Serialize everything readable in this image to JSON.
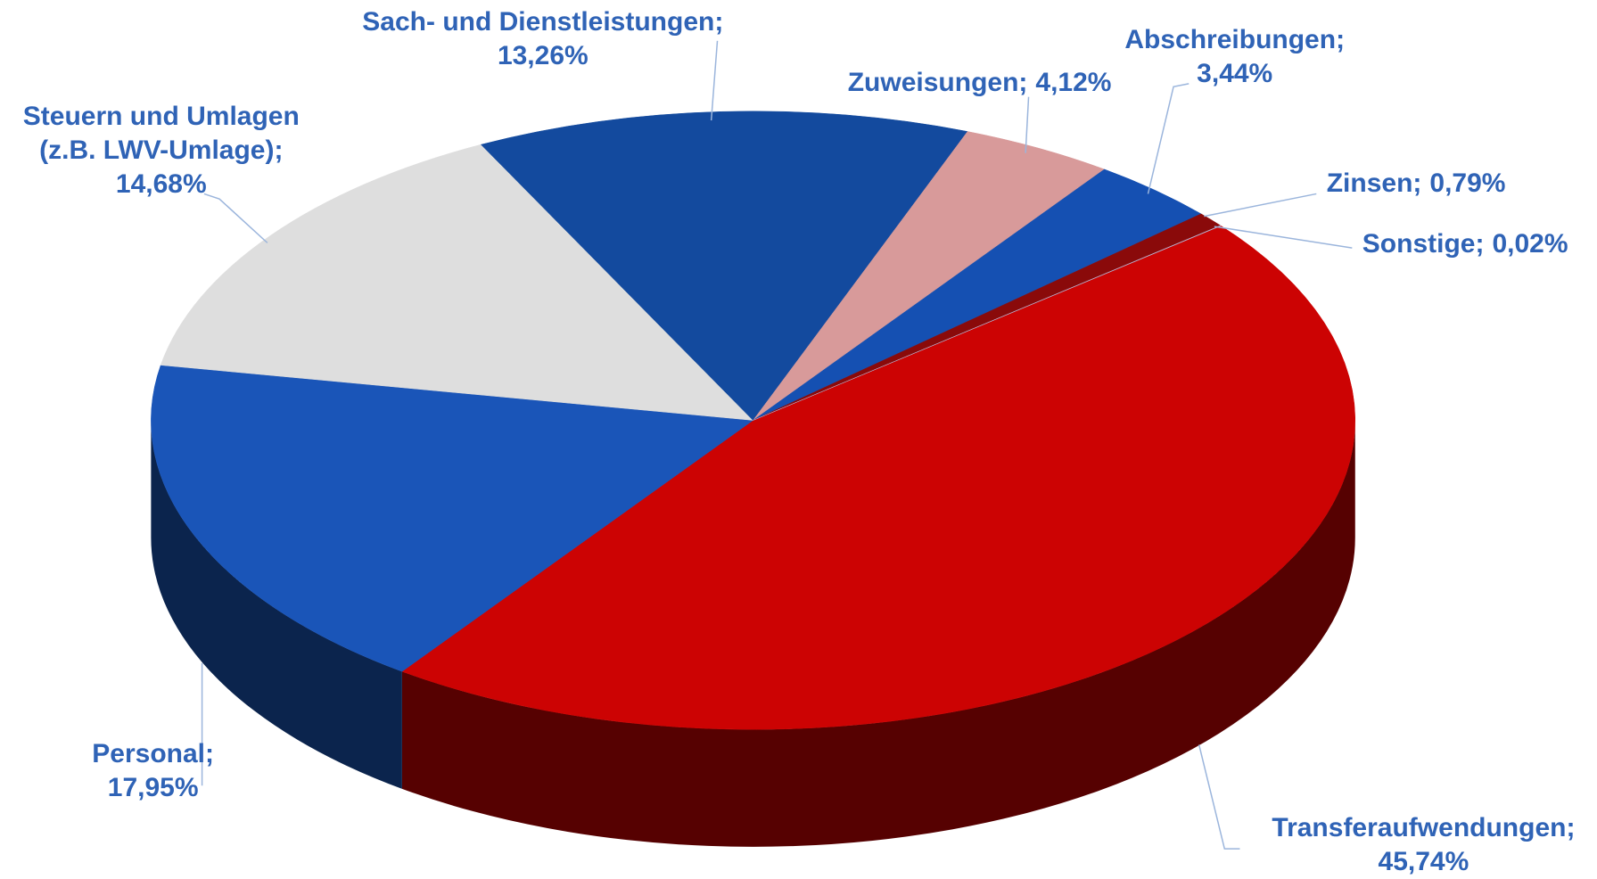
{
  "chart_data": {
    "type": "pie3d",
    "categories": [
      "Transferaufwendungen;",
      "Personal;",
      "Steuern und Umlagen (z.B. LWV-Umlage);",
      "Sach- und Dienstleistungen;",
      "Zuweisungen;",
      "Abschreibungen;",
      "Zinsen;",
      "Sonstige;"
    ],
    "values": [
      45.74,
      17.95,
      14.68,
      13.26,
      4.12,
      3.44,
      0.79,
      0.02
    ],
    "value_labels": [
      "45,74%",
      "17,95%",
      "14,68%",
      "13,26%",
      "4,12%",
      "3,44%",
      "0,79%",
      "0,02%"
    ],
    "colors": [
      "#cc0303",
      "#1a55b8",
      "#dedede",
      "#134a9e",
      "#d89a9a",
      "#1550b2",
      "#8a0a0a",
      "#b8b8d8"
    ]
  }
}
